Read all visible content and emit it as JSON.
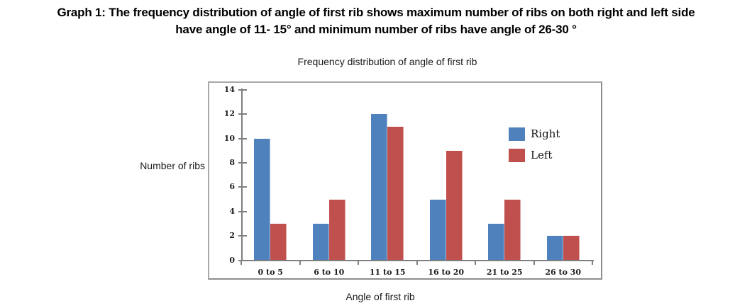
{
  "caption": {
    "line1": "Graph 1: The frequency distribution of angle of first rib shows maximum number of ribs on both right and left side",
    "line2": "have angle of 11- 15° and minimum number of ribs have angle of 26-30 °"
  },
  "chart_data": {
    "type": "bar",
    "title": "Frequency distribution of angle of first rib",
    "xlabel": "Angle of first rib",
    "ylabel": "Number of ribs",
    "categories": [
      "0 to 5",
      "6 to 10",
      "11 to 15",
      "16 to 20",
      "21 to 25",
      "26 to 30"
    ],
    "series": [
      {
        "name": "Right",
        "color": "#4F81BD",
        "values": [
          10,
          3,
          12,
          5,
          3,
          2
        ]
      },
      {
        "name": "Left",
        "color": "#C0504D",
        "values": [
          3,
          5,
          11,
          9,
          5,
          2
        ]
      }
    ],
    "ylim": [
      0,
      14
    ],
    "ytick_step": 2,
    "grid": false,
    "legend_position": "upper-right-inside",
    "axis_color": "#7f7f7f"
  }
}
